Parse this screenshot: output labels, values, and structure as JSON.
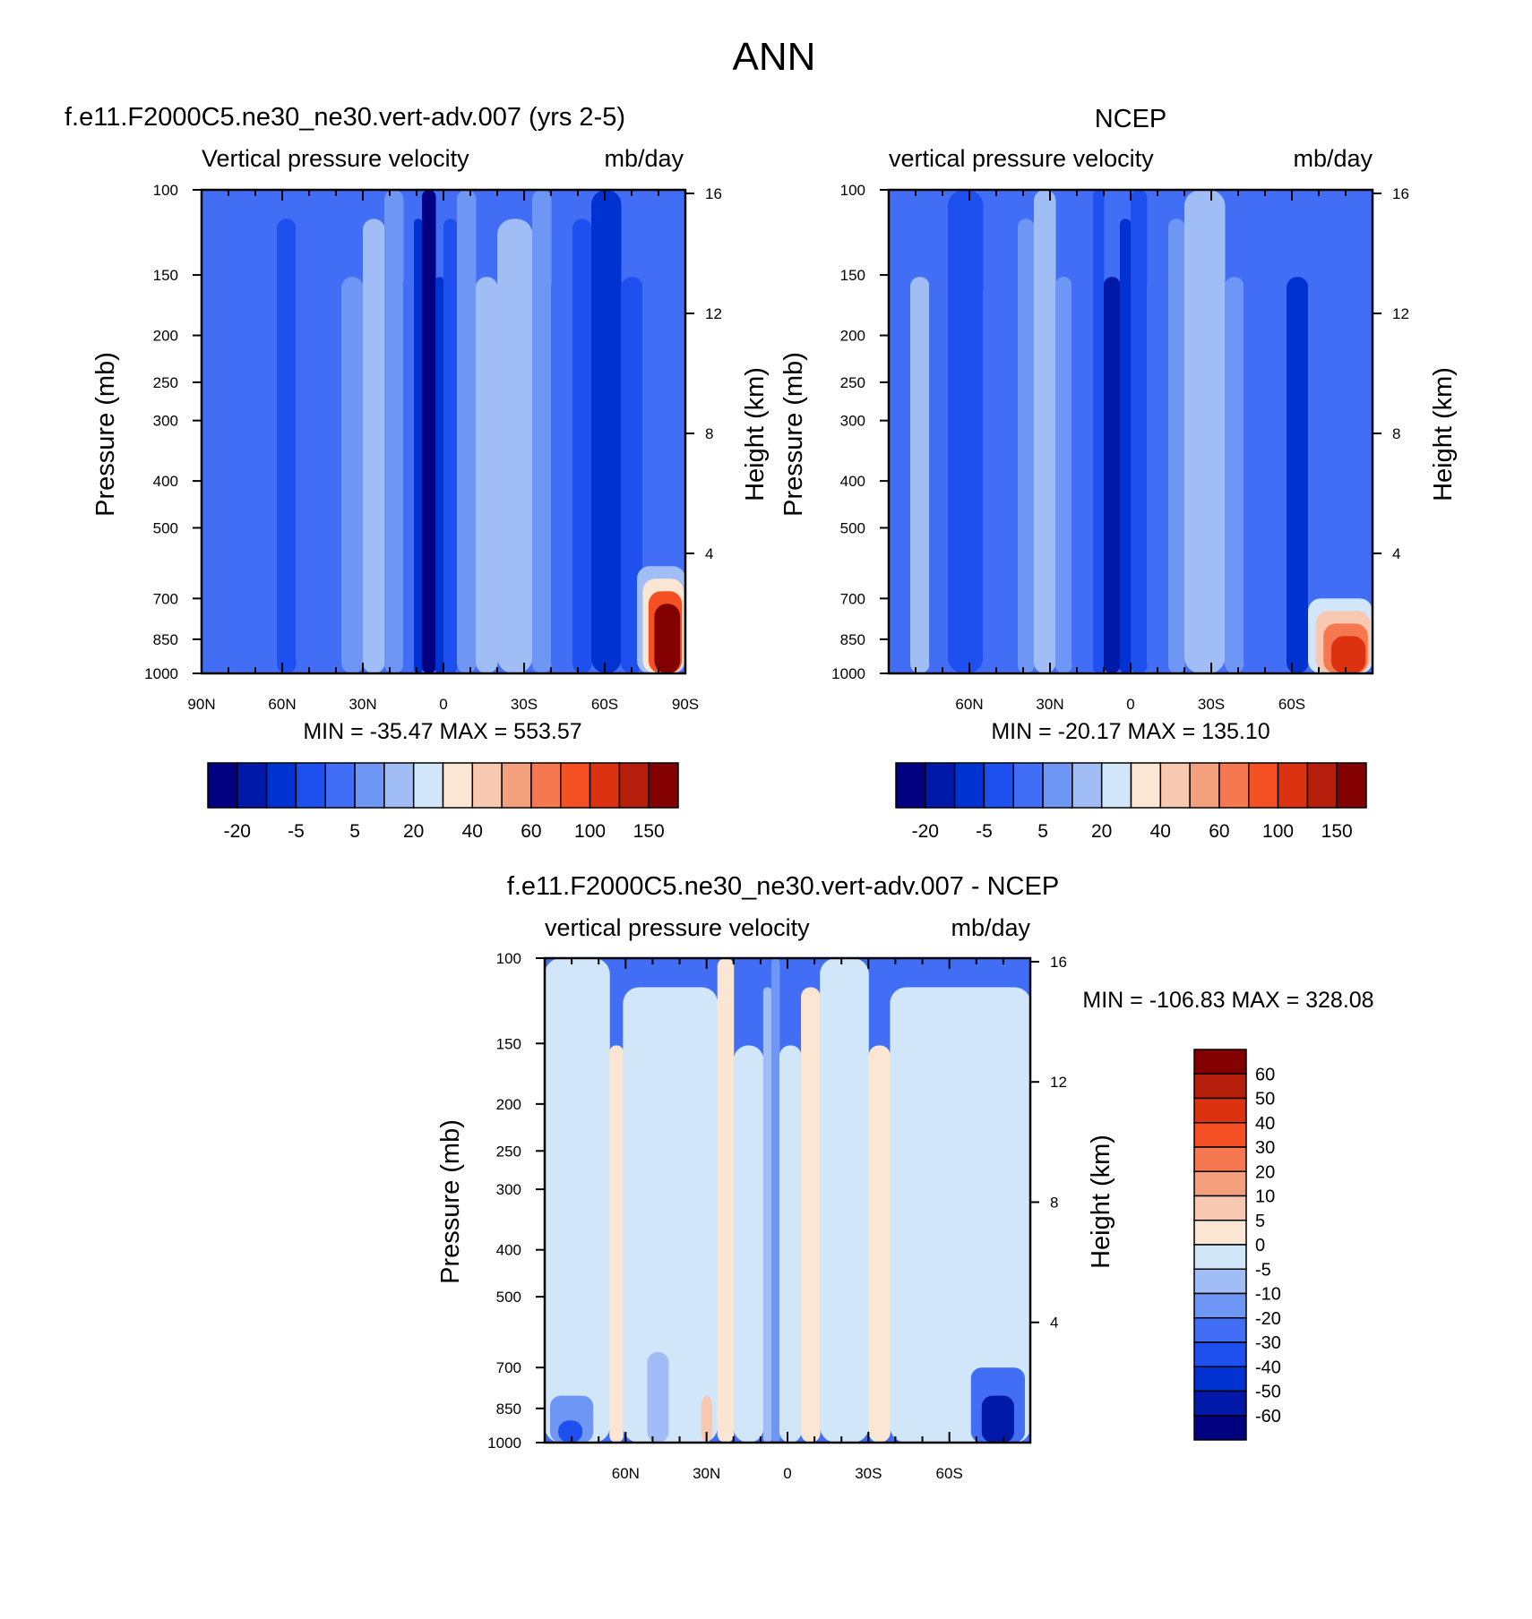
{
  "page_title": "ANN",
  "colors": {
    "model": [
      "#000080",
      "#0019a8",
      "#0032d2",
      "#1e50f0",
      "#416ef5",
      "#6e96f5",
      "#a0bef5",
      "#d2e6fa",
      "#fae6d2",
      "#f8c8b0",
      "#f5a07d",
      "#f57850",
      "#f55023",
      "#dc320f",
      "#b41e0a",
      "#820000"
    ],
    "diff": [
      "#000080",
      "#0019a8",
      "#0032d2",
      "#1e50f0",
      "#416ef5",
      "#6e96f5",
      "#a0bef5",
      "#d2e6fa",
      "#fae6d2",
      "#f8c8b0",
      "#f5a07d",
      "#f57850",
      "#f55023",
      "#dc320f",
      "#b41e0a",
      "#820000"
    ]
  },
  "chart_data": [
    {
      "type": "heatmap",
      "title": "f.e11.F2000C5.ne30_ne30.vert-adv.007 (yrs 2-5)",
      "left_string": "Vertical pressure velocity",
      "right_string": "mb/day",
      "ylabel": "Pressure (mb)",
      "ylabel_right": "Height (km)",
      "x_ticks": [
        {
          "lat": -90,
          "label": "90N"
        },
        {
          "lat": -60,
          "label": "60N"
        },
        {
          "lat": -30,
          "label": "30N"
        },
        {
          "lat": 0,
          "label": "0"
        },
        {
          "lat": 30,
          "label": "30S"
        },
        {
          "lat": 60,
          "label": "60S"
        },
        {
          "lat": 90,
          "label": "90S"
        }
      ],
      "xlim": [
        -90,
        90
      ],
      "y_ticks": [
        {
          "p": 100,
          "label": "100"
        },
        {
          "p": 150,
          "label": "150"
        },
        {
          "p": 200,
          "label": "200"
        },
        {
          "p": 250,
          "label": "250"
        },
        {
          "p": 300,
          "label": "300"
        },
        {
          "p": 400,
          "label": "400"
        },
        {
          "p": 500,
          "label": "500"
        },
        {
          "p": 700,
          "label": "700"
        },
        {
          "p": 850,
          "label": "850"
        },
        {
          "p": 1000,
          "label": "1000"
        }
      ],
      "ylim": [
        1000,
        100
      ],
      "height_ticks": [
        {
          "km": 16,
          "label": "16"
        },
        {
          "km": 12,
          "label": "12"
        },
        {
          "km": 8,
          "label": "8"
        },
        {
          "km": 4,
          "label": "4"
        }
      ],
      "min_max": "MIN = -35.47  MAX = 553.57",
      "colorbar_labels": [
        "-20",
        "-5",
        "5",
        "20",
        "40",
        "60",
        "100",
        "150"
      ],
      "bands": [
        {
          "lat0": -90,
          "lat1": -75,
          "level": 4
        },
        {
          "lat0": -75,
          "lat1": -62,
          "level": 4
        },
        {
          "lat0": -62,
          "lat1": -55,
          "level": 3
        },
        {
          "lat0": -55,
          "lat1": -38,
          "level": 4
        },
        {
          "lat0": -38,
          "lat1": -30,
          "level": 5
        },
        {
          "lat0": -30,
          "lat1": -22,
          "level": 6
        },
        {
          "lat0": -22,
          "lat1": -15,
          "level": 5
        },
        {
          "lat0": -15,
          "lat1": -11,
          "level": 4
        },
        {
          "lat0": -11,
          "lat1": -8,
          "level": 2
        },
        {
          "lat0": -8,
          "lat1": -3,
          "level": 0
        },
        {
          "lat0": -3,
          "lat1": 0,
          "level": 2
        },
        {
          "lat0": 0,
          "lat1": 5,
          "level": 3
        },
        {
          "lat0": 5,
          "lat1": 12,
          "level": 5
        },
        {
          "lat0": 12,
          "lat1": 20,
          "level": 6
        },
        {
          "lat0": 20,
          "lat1": 33,
          "level": 6
        },
        {
          "lat0": 33,
          "lat1": 40,
          "level": 5
        },
        {
          "lat0": 40,
          "lat1": 48,
          "level": 4
        },
        {
          "lat0": 48,
          "lat1": 55,
          "level": 3
        },
        {
          "lat0": 55,
          "lat1": 66,
          "level": 2
        },
        {
          "lat0": 66,
          "lat1": 74,
          "level": 3
        },
        {
          "lat0": 74,
          "lat1": 82,
          "level": 4
        },
        {
          "lat0": 82,
          "lat1": 90,
          "level": 4
        }
      ],
      "corner_blob": {
        "lat0": 72,
        "lat1": 90,
        "p_top": 600,
        "levels": [
          6,
          8,
          12,
          15
        ]
      }
    },
    {
      "type": "heatmap",
      "title": "NCEP",
      "left_string": "vertical pressure velocity",
      "right_string": "mb/day",
      "ylabel": "Pressure (mb)",
      "ylabel_right": "Height (km)",
      "x_ticks": [
        {
          "lat": -60,
          "label": "60N"
        },
        {
          "lat": -30,
          "label": "30N"
        },
        {
          "lat": 0,
          "label": "0"
        },
        {
          "lat": 30,
          "label": "30S"
        },
        {
          "lat": 60,
          "label": "60S"
        }
      ],
      "xlim": [
        -90,
        90
      ],
      "y_ticks": [
        {
          "p": 100,
          "label": "100"
        },
        {
          "p": 150,
          "label": "150"
        },
        {
          "p": 200,
          "label": "200"
        },
        {
          "p": 250,
          "label": "250"
        },
        {
          "p": 300,
          "label": "300"
        },
        {
          "p": 400,
          "label": "400"
        },
        {
          "p": 500,
          "label": "500"
        },
        {
          "p": 700,
          "label": "700"
        },
        {
          "p": 850,
          "label": "850"
        },
        {
          "p": 1000,
          "label": "1000"
        }
      ],
      "ylim": [
        1000,
        100
      ],
      "height_ticks": [
        {
          "km": 16,
          "label": "16"
        },
        {
          "km": 12,
          "label": "12"
        },
        {
          "km": 8,
          "label": "8"
        },
        {
          "km": 4,
          "label": "4"
        }
      ],
      "min_max": "MIN = -20.17  MAX = 135.10",
      "colorbar_labels": [
        "-20",
        "-5",
        "5",
        "20",
        "40",
        "60",
        "100",
        "150"
      ],
      "bands": [
        {
          "lat0": -90,
          "lat1": -82,
          "level": 4
        },
        {
          "lat0": -82,
          "lat1": -75,
          "level": 6
        },
        {
          "lat0": -75,
          "lat1": -68,
          "level": 4
        },
        {
          "lat0": -68,
          "lat1": -55,
          "level": 3
        },
        {
          "lat0": -55,
          "lat1": -42,
          "level": 4
        },
        {
          "lat0": -42,
          "lat1": -36,
          "level": 5
        },
        {
          "lat0": -36,
          "lat1": -28,
          "level": 6
        },
        {
          "lat0": -28,
          "lat1": -22,
          "level": 5
        },
        {
          "lat0": -22,
          "lat1": -14,
          "level": 4
        },
        {
          "lat0": -14,
          "lat1": -10,
          "level": 3
        },
        {
          "lat0": -10,
          "lat1": -4,
          "level": 1
        },
        {
          "lat0": -4,
          "lat1": 0,
          "level": 2
        },
        {
          "lat0": 0,
          "lat1": 6,
          "level": 3
        },
        {
          "lat0": 6,
          "lat1": 14,
          "level": 4
        },
        {
          "lat0": 14,
          "lat1": 20,
          "level": 5
        },
        {
          "lat0": 20,
          "lat1": 35,
          "level": 6
        },
        {
          "lat0": 35,
          "lat1": 42,
          "level": 5
        },
        {
          "lat0": 42,
          "lat1": 50,
          "level": 4
        },
        {
          "lat0": 50,
          "lat1": 58,
          "level": 4
        },
        {
          "lat0": 58,
          "lat1": 66,
          "level": 2
        },
        {
          "lat0": 66,
          "lat1": 74,
          "level": 4
        },
        {
          "lat0": 74,
          "lat1": 90,
          "level": 4
        }
      ],
      "corner_blob": {
        "lat0": 66,
        "lat1": 90,
        "p_top": 700,
        "levels": [
          7,
          9,
          11,
          13
        ]
      }
    },
    {
      "type": "heatmap",
      "title": "f.e11.F2000C5.ne30_ne30.vert-adv.007 - NCEP",
      "left_string": "vertical pressure velocity",
      "right_string": "mb/day",
      "ylabel": "Pressure (mb)",
      "ylabel_right": "Height (km)",
      "x_ticks": [
        {
          "lat": -60,
          "label": "60N"
        },
        {
          "lat": -30,
          "label": "30N"
        },
        {
          "lat": 0,
          "label": "0"
        },
        {
          "lat": 30,
          "label": "30S"
        },
        {
          "lat": 60,
          "label": "60S"
        }
      ],
      "xlim": [
        -90,
        90
      ],
      "y_ticks": [
        {
          "p": 100,
          "label": "100"
        },
        {
          "p": 150,
          "label": "150"
        },
        {
          "p": 200,
          "label": "200"
        },
        {
          "p": 250,
          "label": "250"
        },
        {
          "p": 300,
          "label": "300"
        },
        {
          "p": 400,
          "label": "400"
        },
        {
          "p": 500,
          "label": "500"
        },
        {
          "p": 700,
          "label": "700"
        },
        {
          "p": 850,
          "label": "850"
        },
        {
          "p": 1000,
          "label": "1000"
        }
      ],
      "ylim": [
        1000,
        100
      ],
      "height_ticks": [
        {
          "km": 16,
          "label": "16"
        },
        {
          "km": 12,
          "label": "12"
        },
        {
          "km": 8,
          "label": "8"
        },
        {
          "km": 4,
          "label": "4"
        }
      ],
      "min_max": "MIN = -106.83  MAX = 328.08",
      "colorbar_labels": [
        "60",
        "50",
        "40",
        "30",
        "20",
        "10",
        "5",
        "0",
        "-5",
        "-10",
        "-20",
        "-30",
        "-40",
        "-50",
        "-60"
      ],
      "bands": [
        {
          "lat0": -90,
          "lat1": -66,
          "level": 7
        },
        {
          "lat0": -66,
          "lat1": -61,
          "level": 8
        },
        {
          "lat0": -61,
          "lat1": -26,
          "level": 7
        },
        {
          "lat0": -26,
          "lat1": -20,
          "level": 8
        },
        {
          "lat0": -20,
          "lat1": -9,
          "level": 7
        },
        {
          "lat0": -9,
          "lat1": -6,
          "level": 6
        },
        {
          "lat0": -6,
          "lat1": -3,
          "level": 5
        },
        {
          "lat0": -3,
          "lat1": 5,
          "level": 7
        },
        {
          "lat0": 5,
          "lat1": 12,
          "level": 8
        },
        {
          "lat0": 12,
          "lat1": 30,
          "level": 7
        },
        {
          "lat0": 30,
          "lat1": 38,
          "level": 8
        },
        {
          "lat0": 38,
          "lat1": 90,
          "level": 7
        }
      ],
      "lower_blobs": [
        {
          "lat0": -88,
          "lat1": -72,
          "p_top": 800,
          "level": 5
        },
        {
          "lat0": -85,
          "lat1": -76,
          "p_top": 900,
          "level": 3
        },
        {
          "lat0": -52,
          "lat1": -44,
          "p_top": 650,
          "level": 6
        },
        {
          "lat0": -32,
          "lat1": -28,
          "p_top": 800,
          "level": 9
        },
        {
          "lat0": 68,
          "lat1": 88,
          "p_top": 700,
          "level": 4
        },
        {
          "lat0": 72,
          "lat1": 84,
          "p_top": 800,
          "level": 1
        }
      ]
    }
  ]
}
